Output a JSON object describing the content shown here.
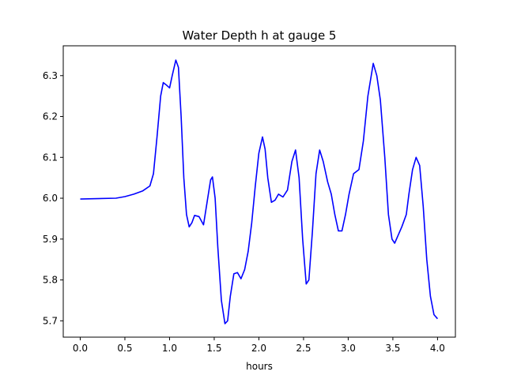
{
  "chart_data": {
    "type": "line",
    "title": "Water Depth h at gauge 5",
    "xlabel": "hours",
    "ylabel": "",
    "xlim": [
      -0.19,
      4.2
    ],
    "ylim": [
      5.66,
      6.373
    ],
    "xticks": [
      0.0,
      0.5,
      1.0,
      1.5,
      2.0,
      2.5,
      3.0,
      3.5,
      4.0
    ],
    "xtick_labels": [
      "0.0",
      "0.5",
      "1.0",
      "1.5",
      "2.0",
      "2.5",
      "3.0",
      "3.5",
      "4.0"
    ],
    "yticks": [
      5.7,
      5.8,
      5.9,
      6.0,
      6.1,
      6.2,
      6.3
    ],
    "ytick_labels": [
      "5.7",
      "5.8",
      "5.9",
      "6.0",
      "6.1",
      "6.2",
      "6.3"
    ],
    "grid": false,
    "series": [
      {
        "color": "#0000ff",
        "points": [
          [
            0.0,
            5.998
          ],
          [
            0.4,
            6.0
          ],
          [
            0.5,
            6.004
          ],
          [
            0.6,
            6.01
          ],
          [
            0.7,
            6.018
          ],
          [
            0.78,
            6.03
          ],
          [
            0.82,
            6.06
          ],
          [
            0.86,
            6.15
          ],
          [
            0.9,
            6.25
          ],
          [
            0.93,
            6.283
          ],
          [
            0.96,
            6.278
          ],
          [
            1.0,
            6.27
          ],
          [
            1.03,
            6.3
          ],
          [
            1.07,
            6.338
          ],
          [
            1.1,
            6.32
          ],
          [
            1.13,
            6.2
          ],
          [
            1.16,
            6.05
          ],
          [
            1.19,
            5.96
          ],
          [
            1.22,
            5.93
          ],
          [
            1.25,
            5.94
          ],
          [
            1.28,
            5.958
          ],
          [
            1.33,
            5.955
          ],
          [
            1.38,
            5.935
          ],
          [
            1.42,
            5.99
          ],
          [
            1.46,
            6.045
          ],
          [
            1.48,
            6.052
          ],
          [
            1.51,
            6.0
          ],
          [
            1.54,
            5.88
          ],
          [
            1.58,
            5.75
          ],
          [
            1.62,
            5.693
          ],
          [
            1.65,
            5.7
          ],
          [
            1.68,
            5.76
          ],
          [
            1.72,
            5.815
          ],
          [
            1.76,
            5.818
          ],
          [
            1.8,
            5.803
          ],
          [
            1.84,
            5.825
          ],
          [
            1.88,
            5.87
          ],
          [
            1.92,
            5.94
          ],
          [
            1.96,
            6.03
          ],
          [
            2.0,
            6.11
          ],
          [
            2.04,
            6.15
          ],
          [
            2.07,
            6.12
          ],
          [
            2.1,
            6.05
          ],
          [
            2.14,
            5.99
          ],
          [
            2.18,
            5.995
          ],
          [
            2.22,
            6.01
          ],
          [
            2.27,
            6.003
          ],
          [
            2.32,
            6.02
          ],
          [
            2.37,
            6.09
          ],
          [
            2.41,
            6.118
          ],
          [
            2.45,
            6.05
          ],
          [
            2.49,
            5.9
          ],
          [
            2.53,
            5.79
          ],
          [
            2.56,
            5.8
          ],
          [
            2.6,
            5.92
          ],
          [
            2.64,
            6.06
          ],
          [
            2.68,
            6.118
          ],
          [
            2.72,
            6.09
          ],
          [
            2.77,
            6.04
          ],
          [
            2.81,
            6.01
          ],
          [
            2.85,
            5.96
          ],
          [
            2.89,
            5.92
          ],
          [
            2.93,
            5.92
          ],
          [
            2.97,
            5.96
          ],
          [
            3.01,
            6.01
          ],
          [
            3.06,
            6.06
          ],
          [
            3.12,
            6.07
          ],
          [
            3.17,
            6.14
          ],
          [
            3.22,
            6.25
          ],
          [
            3.28,
            6.33
          ],
          [
            3.32,
            6.3
          ],
          [
            3.36,
            6.24
          ],
          [
            3.41,
            6.1
          ],
          [
            3.45,
            5.96
          ],
          [
            3.49,
            5.9
          ],
          [
            3.52,
            5.89
          ],
          [
            3.55,
            5.905
          ],
          [
            3.6,
            5.93
          ],
          [
            3.65,
            5.96
          ],
          [
            3.68,
            6.01
          ],
          [
            3.72,
            6.07
          ],
          [
            3.76,
            6.1
          ],
          [
            3.8,
            6.08
          ],
          [
            3.84,
            5.98
          ],
          [
            3.88,
            5.85
          ],
          [
            3.92,
            5.76
          ],
          [
            3.96,
            5.715
          ],
          [
            4.0,
            5.705
          ]
        ]
      }
    ]
  }
}
